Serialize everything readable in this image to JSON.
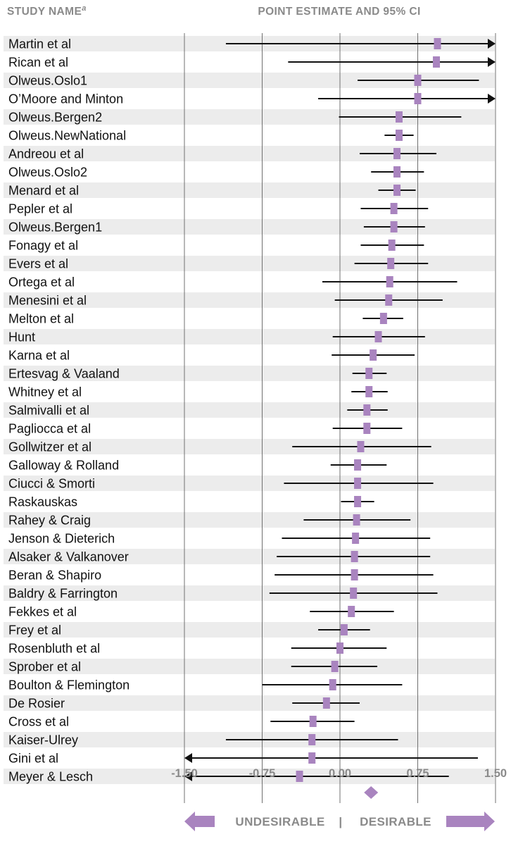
{
  "headers": {
    "study_name": "STUDY NAME",
    "study_name_sup": "a",
    "estimate": "POINT ESTIMATE AND 95% CI"
  },
  "direction": {
    "left": "UNDESIRABLE",
    "separator": "|",
    "right": "DESIRABLE"
  },
  "colors": {
    "marker": "#a984bf",
    "band": "#ececec",
    "line": "#111111",
    "axis_text": "#8a8a8a"
  },
  "chart_data": {
    "type": "forest",
    "xlim": [
      -1.5,
      1.5
    ],
    "ticks": [
      -1.5,
      -0.75,
      0.0,
      0.75,
      1.5
    ],
    "tick_labels": [
      "-1.50",
      "-0.75",
      "0.00",
      "0.75",
      "1.50"
    ],
    "summary_estimate": 0.3,
    "studies": [
      {
        "name": "Martin et al",
        "est": 0.94,
        "lo": -1.1,
        "hi": 1.5,
        "arrow_right": true
      },
      {
        "name": "Rican et al",
        "est": 0.93,
        "lo": -0.5,
        "hi": 1.5,
        "arrow_right": true
      },
      {
        "name": "Olweus.Oslo1",
        "est": 0.75,
        "lo": 0.17,
        "hi": 1.34
      },
      {
        "name": "O’Moore and Minton",
        "est": 0.75,
        "lo": -0.21,
        "hi": 1.5,
        "arrow_right": true
      },
      {
        "name": "Olweus.Bergen2",
        "est": 0.57,
        "lo": -0.01,
        "hi": 1.17
      },
      {
        "name": "Olweus.NewNational",
        "est": 0.57,
        "lo": 0.43,
        "hi": 0.71
      },
      {
        "name": "Andreou et al",
        "est": 0.55,
        "lo": 0.19,
        "hi": 0.93
      },
      {
        "name": "Olweus.Oslo2",
        "est": 0.55,
        "lo": 0.3,
        "hi": 0.81
      },
      {
        "name": "Menard et al",
        "est": 0.55,
        "lo": 0.37,
        "hi": 0.73
      },
      {
        "name": "Pepler et al",
        "est": 0.52,
        "lo": 0.2,
        "hi": 0.85
      },
      {
        "name": "Olweus.Bergen1",
        "est": 0.52,
        "lo": 0.23,
        "hi": 0.82
      },
      {
        "name": "Fonagy et al",
        "est": 0.5,
        "lo": 0.2,
        "hi": 0.81
      },
      {
        "name": "Evers et al",
        "est": 0.49,
        "lo": 0.14,
        "hi": 0.85
      },
      {
        "name": "Ortega et al",
        "est": 0.48,
        "lo": -0.17,
        "hi": 1.13
      },
      {
        "name": "Menesini et al",
        "est": 0.47,
        "lo": -0.05,
        "hi": 0.99
      },
      {
        "name": "Melton et al",
        "est": 0.42,
        "lo": 0.22,
        "hi": 0.61
      },
      {
        "name": "Hunt",
        "est": 0.37,
        "lo": -0.07,
        "hi": 0.82
      },
      {
        "name": "Karna et al",
        "est": 0.32,
        "lo": -0.08,
        "hi": 0.72
      },
      {
        "name": "Ertesvag & Vaaland",
        "est": 0.28,
        "lo": 0.12,
        "hi": 0.45
      },
      {
        "name": "Whitney et al",
        "est": 0.28,
        "lo": 0.11,
        "hi": 0.46
      },
      {
        "name": "Salmivalli et al",
        "est": 0.26,
        "lo": 0.07,
        "hi": 0.46
      },
      {
        "name": "Pagliocca et al",
        "est": 0.26,
        "lo": -0.07,
        "hi": 0.6
      },
      {
        "name": "Gollwitzer et al",
        "est": 0.2,
        "lo": -0.46,
        "hi": 0.88
      },
      {
        "name": "Galloway & Rolland",
        "est": 0.17,
        "lo": -0.09,
        "hi": 0.45
      },
      {
        "name": "Ciucci & Smorti",
        "est": 0.17,
        "lo": -0.54,
        "hi": 0.9
      },
      {
        "name": "Raskauskas",
        "est": 0.17,
        "lo": 0.01,
        "hi": 0.33
      },
      {
        "name": "Rahey & Craig",
        "est": 0.16,
        "lo": -0.35,
        "hi": 0.68
      },
      {
        "name": "Jenson & Dieterich",
        "est": 0.15,
        "lo": -0.56,
        "hi": 0.87
      },
      {
        "name": "Alsaker & Valkanover",
        "est": 0.14,
        "lo": -0.61,
        "hi": 0.87
      },
      {
        "name": "Beran & Shapiro",
        "est": 0.14,
        "lo": -0.63,
        "hi": 0.9
      },
      {
        "name": "Baldry & Farrington",
        "est": 0.13,
        "lo": -0.68,
        "hi": 0.94
      },
      {
        "name": "Fekkes et al",
        "est": 0.11,
        "lo": -0.29,
        "hi": 0.52
      },
      {
        "name": "Frey et al",
        "est": 0.04,
        "lo": -0.21,
        "hi": 0.29
      },
      {
        "name": "Rosenbluth et al",
        "est": 0.0,
        "lo": -0.47,
        "hi": 0.45
      },
      {
        "name": "Sprober et al",
        "est": -0.05,
        "lo": -0.47,
        "hi": 0.36
      },
      {
        "name": "Boulton & Flemington",
        "est": -0.07,
        "lo": -0.75,
        "hi": 0.6
      },
      {
        "name": "De Rosier",
        "est": -0.13,
        "lo": -0.46,
        "hi": 0.19
      },
      {
        "name": "Cross et al",
        "est": -0.26,
        "lo": -0.67,
        "hi": 0.14
      },
      {
        "name": "Kaiser-Ulrey",
        "est": -0.27,
        "lo": -1.1,
        "hi": 0.56
      },
      {
        "name": "Gini et al",
        "est": -0.27,
        "lo": -1.5,
        "hi": 1.33,
        "arrow_left": true
      },
      {
        "name": "Meyer & Lesch",
        "est": -0.39,
        "lo": -1.5,
        "hi": 1.05,
        "arrow_left": true
      }
    ]
  }
}
